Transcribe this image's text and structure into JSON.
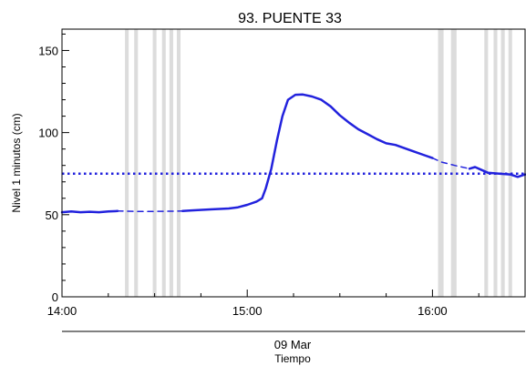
{
  "chart_data": {
    "type": "line",
    "title": "93. PUENTE 33",
    "ylabel": "Nivel 1 minutos (cm)",
    "xlabel": "Tiempo",
    "date_label": "09 Mar",
    "x_unit": "hours (time of day)",
    "xlim": [
      14.0,
      16.5
    ],
    "ylim": [
      0,
      163
    ],
    "y_ticks": [
      0,
      50,
      100,
      150
    ],
    "x_ticks": [
      {
        "value": 14.0,
        "label": "14:00"
      },
      {
        "value": 15.0,
        "label": "15:00"
      },
      {
        "value": 16.0,
        "label": "16:00"
      }
    ],
    "grid": false,
    "legend": "none",
    "colors": {
      "series": "#2222dd",
      "gaps": "#dcdcdc",
      "threshold": "#2222dd"
    },
    "threshold": {
      "value": 75,
      "style": "dotted"
    },
    "gap_bands": [
      [
        14.34,
        14.36
      ],
      [
        14.39,
        14.41
      ],
      [
        14.49,
        14.51
      ],
      [
        14.54,
        14.56
      ],
      [
        14.58,
        14.6
      ],
      [
        14.62,
        14.64
      ],
      [
        16.03,
        16.06
      ],
      [
        16.1,
        16.13
      ],
      [
        16.28,
        16.3
      ],
      [
        16.33,
        16.35
      ],
      [
        16.37,
        16.39
      ],
      [
        16.41,
        16.43
      ]
    ],
    "series": [
      {
        "style": "solid",
        "points": [
          [
            14.0,
            51.5
          ],
          [
            14.05,
            52.0
          ],
          [
            14.1,
            51.5
          ],
          [
            14.15,
            51.8
          ],
          [
            14.2,
            51.5
          ],
          [
            14.25,
            52.0
          ],
          [
            14.3,
            52.2
          ]
        ]
      },
      {
        "style": "dashed",
        "points": [
          [
            14.3,
            52.2
          ],
          [
            14.4,
            52.0
          ],
          [
            14.5,
            52.0
          ],
          [
            14.6,
            52.1
          ],
          [
            14.65,
            52.3
          ]
        ]
      },
      {
        "style": "solid",
        "points": [
          [
            14.65,
            52.3
          ],
          [
            14.7,
            52.6
          ],
          [
            14.8,
            53.2
          ],
          [
            14.9,
            53.8
          ],
          [
            14.95,
            54.5
          ],
          [
            15.0,
            56.0
          ],
          [
            15.05,
            58.0
          ],
          [
            15.08,
            60.0
          ],
          [
            15.1,
            66.0
          ],
          [
            15.13,
            78.0
          ],
          [
            15.16,
            95.0
          ],
          [
            15.19,
            110.0
          ],
          [
            15.22,
            120.0
          ],
          [
            15.26,
            123.0
          ],
          [
            15.3,
            123.2
          ],
          [
            15.35,
            122.0
          ],
          [
            15.4,
            120.0
          ],
          [
            15.45,
            116.0
          ],
          [
            15.5,
            110.5
          ],
          [
            15.55,
            106.0
          ],
          [
            15.6,
            102.0
          ],
          [
            15.65,
            99.0
          ],
          [
            15.7,
            96.0
          ],
          [
            15.75,
            93.5
          ],
          [
            15.8,
            92.5
          ],
          [
            15.85,
            90.5
          ],
          [
            15.9,
            88.5
          ],
          [
            15.95,
            86.5
          ],
          [
            16.0,
            84.5
          ]
        ]
      },
      {
        "style": "dashed",
        "points": [
          [
            16.0,
            84.5
          ],
          [
            16.05,
            82.0
          ],
          [
            16.12,
            80.0
          ],
          [
            16.2,
            78.0
          ]
        ]
      },
      {
        "style": "solid",
        "points": [
          [
            16.2,
            78.0
          ],
          [
            16.23,
            79.0
          ],
          [
            16.26,
            77.5
          ],
          [
            16.3,
            75.5
          ],
          [
            16.36,
            75.0
          ],
          [
            16.42,
            74.5
          ],
          [
            16.46,
            73.0
          ],
          [
            16.5,
            74.5
          ]
        ]
      }
    ]
  }
}
